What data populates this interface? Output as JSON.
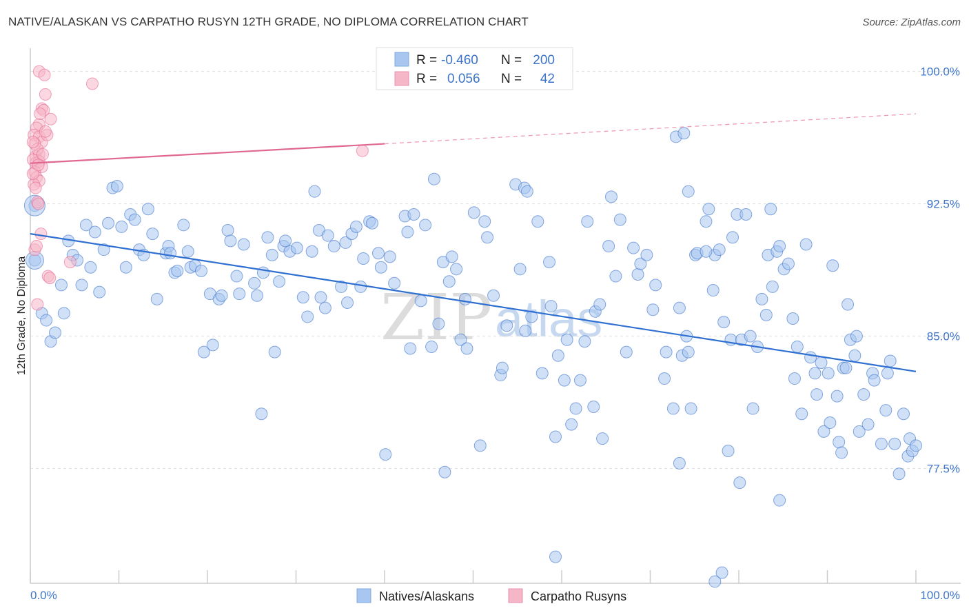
{
  "header": {
    "title": "NATIVE/ALASKAN VS CARPATHO RUSYN 12TH GRADE, NO DIPLOMA CORRELATION CHART",
    "source": "Source: ZipAtlas.com"
  },
  "watermark": {
    "zip": "ZIP",
    "atlas": "atlas"
  },
  "legend": {
    "rows": [
      {
        "r_label": "R =",
        "r_value": "-0.460",
        "n_label": "N =",
        "n_value": "200",
        "color": "#a8c6f0"
      },
      {
        "r_label": "R =",
        "r_value": "0.056",
        "n_label": "N =",
        "n_value": "42",
        "color": "#f5b6c8"
      }
    ]
  },
  "bottom_legend": [
    {
      "label": "Natives/Alaskans",
      "color": "#a8c6f0"
    },
    {
      "label": "Carpatho Rusyns",
      "color": "#f5b6c8"
    }
  ],
  "chart_data": {
    "type": "scatter",
    "ylabel": "12th Grade, No Diploma",
    "xlim": [
      0,
      100
    ],
    "ylim": [
      71,
      101
    ],
    "x_tick_labels": [
      "0.0%",
      "100.0%"
    ],
    "y_ticks": [
      {
        "value": 100.0,
        "label": "100.0%"
      },
      {
        "value": 92.5,
        "label": "92.5%"
      },
      {
        "value": 85.0,
        "label": "85.0%"
      },
      {
        "value": 77.5,
        "label": "77.5%"
      }
    ],
    "grid": "dashed horizontal",
    "series": [
      {
        "name": "Natives/Alaskans",
        "color": "#3d73c9",
        "fill": "#a8c6f0",
        "trend": {
          "x0": 0,
          "y0": 90.8,
          "x1": 100,
          "y1": 83.0
        },
        "points": [
          [
            0.5,
            92.4
          ],
          [
            0.5,
            89.3
          ],
          [
            1.3,
            86.3
          ],
          [
            1.8,
            85.9
          ],
          [
            2.3,
            84.7
          ],
          [
            2.8,
            85.2
          ],
          [
            3.5,
            87.9
          ],
          [
            3.8,
            86.3
          ],
          [
            4.3,
            90.4
          ],
          [
            4.8,
            89.6
          ],
          [
            5.3,
            89.3
          ],
          [
            5.8,
            87.9
          ],
          [
            6.3,
            91.3
          ],
          [
            6.8,
            88.9
          ],
          [
            7.3,
            90.9
          ],
          [
            7.8,
            87.5
          ],
          [
            8.3,
            89.9
          ],
          [
            8.8,
            91.4
          ],
          [
            9.3,
            93.4
          ],
          [
            9.8,
            93.5
          ],
          [
            10.3,
            91.2
          ],
          [
            10.8,
            88.9
          ],
          [
            11.3,
            91.9
          ],
          [
            11.8,
            91.6
          ],
          [
            12.3,
            89.9
          ],
          [
            12.8,
            89.6
          ],
          [
            13.3,
            92.2
          ],
          [
            13.8,
            90.8
          ],
          [
            14.3,
            87.1
          ],
          [
            15.3,
            89.7
          ],
          [
            15.6,
            90.1
          ],
          [
            15.8,
            89.7
          ],
          [
            16.3,
            88.6
          ],
          [
            16.6,
            88.7
          ],
          [
            17.3,
            91.3
          ],
          [
            17.8,
            89.8
          ],
          [
            18.1,
            88.9
          ],
          [
            18.6,
            89.0
          ],
          [
            19.3,
            88.7
          ],
          [
            19.6,
            84.1
          ],
          [
            20.3,
            87.4
          ],
          [
            20.6,
            84.5
          ],
          [
            21.3,
            87.1
          ],
          [
            21.6,
            87.3
          ],
          [
            22.3,
            91.0
          ],
          [
            22.6,
            90.4
          ],
          [
            23.3,
            88.4
          ],
          [
            23.6,
            87.4
          ],
          [
            24.1,
            90.2
          ],
          [
            25.3,
            88.0
          ],
          [
            25.6,
            87.3
          ],
          [
            26.1,
            80.6
          ],
          [
            26.3,
            88.6
          ],
          [
            26.8,
            90.6
          ],
          [
            27.3,
            89.6
          ],
          [
            27.6,
            84.1
          ],
          [
            28.1,
            88.1
          ],
          [
            28.6,
            90.1
          ],
          [
            28.8,
            90.4
          ],
          [
            29.3,
            89.8
          ],
          [
            30.1,
            90.0
          ],
          [
            30.8,
            87.2
          ],
          [
            31.3,
            86.1
          ],
          [
            31.8,
            89.8
          ],
          [
            32.1,
            93.2
          ],
          [
            32.6,
            91.0
          ],
          [
            32.8,
            87.2
          ],
          [
            33.3,
            86.6
          ],
          [
            33.6,
            90.7
          ],
          [
            34.3,
            90.1
          ],
          [
            35.1,
            87.8
          ],
          [
            35.6,
            90.3
          ],
          [
            35.8,
            86.9
          ],
          [
            36.3,
            90.8
          ],
          [
            36.8,
            91.2
          ],
          [
            37.3,
            87.8
          ],
          [
            37.6,
            89.4
          ],
          [
            38.3,
            91.5
          ],
          [
            38.6,
            91.4
          ],
          [
            39.3,
            89.7
          ],
          [
            39.6,
            88.9
          ],
          [
            40.1,
            78.3
          ],
          [
            40.6,
            89.5
          ],
          [
            41.1,
            88.0
          ],
          [
            42.3,
            91.8
          ],
          [
            42.6,
            90.9
          ],
          [
            43.3,
            91.9
          ],
          [
            44.1,
            87.0
          ],
          [
            44.6,
            91.3
          ],
          [
            45.3,
            84.4
          ],
          [
            45.6,
            93.9
          ],
          [
            46.1,
            85.7
          ],
          [
            46.6,
            89.2
          ],
          [
            46.8,
            77.3
          ],
          [
            47.3,
            88.1
          ],
          [
            47.6,
            89.5
          ],
          [
            48.1,
            88.8
          ],
          [
            48.6,
            84.8
          ],
          [
            49.1,
            87.1
          ],
          [
            49.3,
            84.3
          ],
          [
            50.1,
            92.0
          ],
          [
            50.8,
            78.8
          ],
          [
            51.3,
            91.5
          ],
          [
            51.6,
            90.6
          ],
          [
            52.3,
            87.3
          ],
          [
            53.1,
            82.8
          ],
          [
            53.3,
            83.2
          ],
          [
            53.8,
            85.6
          ],
          [
            54.8,
            93.6
          ],
          [
            55.3,
            88.8
          ],
          [
            55.8,
            93.4
          ],
          [
            56.1,
            93.2
          ],
          [
            56.6,
            86.1
          ],
          [
            57.3,
            91.5
          ],
          [
            57.8,
            82.9
          ],
          [
            58.6,
            89.2
          ],
          [
            58.8,
            86.7
          ],
          [
            59.3,
            79.3
          ],
          [
            60.3,
            82.5
          ],
          [
            60.6,
            84.8
          ],
          [
            61.1,
            80.0
          ],
          [
            61.6,
            80.9
          ],
          [
            62.1,
            82.5
          ],
          [
            62.6,
            84.7
          ],
          [
            62.9,
            91.5
          ],
          [
            63.6,
            81.0
          ],
          [
            63.8,
            86.4
          ],
          [
            64.3,
            86.8
          ],
          [
            64.6,
            79.2
          ],
          [
            65.3,
            90.1
          ],
          [
            65.6,
            92.9
          ],
          [
            66.1,
            88.4
          ],
          [
            66.6,
            91.6
          ],
          [
            67.3,
            84.1
          ],
          [
            68.1,
            90.0
          ],
          [
            68.6,
            88.5
          ],
          [
            68.9,
            89.1
          ],
          [
            69.6,
            89.6
          ],
          [
            70.3,
            86.5
          ],
          [
            70.6,
            87.9
          ],
          [
            71.6,
            82.6
          ],
          [
            71.8,
            84.1
          ],
          [
            72.6,
            80.9
          ],
          [
            73.3,
            86.6
          ],
          [
            73.6,
            83.9
          ],
          [
            74.1,
            85.0
          ],
          [
            74.3,
            93.2
          ],
          [
            74.6,
            80.9
          ],
          [
            75.1,
            89.6
          ],
          [
            75.3,
            89.7
          ],
          [
            76.3,
            91.5
          ],
          [
            76.6,
            92.2
          ],
          [
            77.1,
            87.6
          ],
          [
            77.3,
            89.6
          ],
          [
            77.8,
            89.9
          ],
          [
            78.3,
            85.8
          ],
          [
            78.8,
            78.5
          ],
          [
            79.1,
            84.8
          ],
          [
            79.3,
            90.6
          ],
          [
            79.8,
            91.9
          ],
          [
            80.1,
            76.7
          ],
          [
            80.3,
            84.8
          ],
          [
            80.8,
            91.9
          ],
          [
            81.3,
            85.0
          ],
          [
            81.6,
            80.9
          ],
          [
            82.1,
            84.4
          ],
          [
            82.6,
            87.1
          ],
          [
            83.1,
            86.2
          ],
          [
            83.3,
            89.6
          ],
          [
            83.6,
            92.2
          ],
          [
            83.8,
            87.8
          ],
          [
            84.3,
            89.8
          ],
          [
            84.6,
            90.1
          ],
          [
            85.1,
            88.8
          ],
          [
            85.6,
            89.1
          ],
          [
            86.1,
            86.0
          ],
          [
            86.3,
            82.6
          ],
          [
            86.6,
            84.4
          ],
          [
            87.1,
            80.6
          ],
          [
            87.6,
            90.2
          ],
          [
            88.1,
            83.8
          ],
          [
            88.6,
            82.9
          ],
          [
            88.8,
            81.7
          ],
          [
            89.3,
            83.5
          ],
          [
            89.6,
            79.6
          ],
          [
            90.1,
            82.9
          ],
          [
            90.3,
            80.1
          ],
          [
            90.6,
            89.0
          ],
          [
            91.1,
            81.6
          ],
          [
            91.3,
            79.0
          ],
          [
            91.6,
            78.4
          ],
          [
            91.8,
            83.2
          ],
          [
            92.1,
            83.2
          ],
          [
            92.3,
            86.8
          ],
          [
            92.6,
            84.8
          ],
          [
            93.1,
            83.9
          ],
          [
            93.3,
            85.0
          ],
          [
            93.6,
            79.6
          ],
          [
            94.1,
            81.7
          ],
          [
            94.6,
            80.0
          ],
          [
            95.1,
            82.9
          ],
          [
            95.3,
            82.5
          ],
          [
            96.1,
            78.9
          ],
          [
            96.6,
            80.8
          ],
          [
            96.8,
            82.9
          ],
          [
            97.1,
            83.6
          ],
          [
            97.6,
            78.9
          ],
          [
            98.1,
            77.2
          ],
          [
            98.6,
            80.6
          ],
          [
            99.1,
            78.2
          ],
          [
            99.3,
            79.2
          ],
          [
            99.6,
            78.5
          ],
          [
            100.0,
            78.8
          ],
          [
            59.6,
            83.9
          ],
          [
            42.9,
            84.3
          ],
          [
            55.9,
            85.3
          ],
          [
            74.3,
            84.1
          ],
          [
            76.3,
            89.8
          ],
          [
            72.9,
            96.3
          ],
          [
            73.8,
            96.5
          ],
          [
            59.3,
            72.5
          ],
          [
            77.3,
            71.1
          ],
          [
            78.1,
            71.6
          ],
          [
            84.6,
            75.7
          ],
          [
            73.3,
            77.8
          ]
        ]
      },
      {
        "name": "Carpatho Rusyns",
        "color": "#e86a95",
        "fill": "#f5b6c8",
        "trend": {
          "x0": 0,
          "y0": 94.8,
          "x1": 40,
          "y1": 95.9,
          "dash_to": {
            "x": 100,
            "y": 97.6
          }
        },
        "points": [
          [
            1.0,
            100.0
          ],
          [
            1.6,
            99.8
          ],
          [
            1.7,
            98.7
          ],
          [
            7.0,
            99.3
          ],
          [
            1.3,
            97.9
          ],
          [
            1.5,
            97.8
          ],
          [
            2.3,
            97.3
          ],
          [
            1.0,
            97.0
          ],
          [
            0.7,
            96.8
          ],
          [
            0.4,
            96.4
          ],
          [
            1.0,
            96.3
          ],
          [
            1.3,
            96.0
          ],
          [
            1.9,
            96.4
          ],
          [
            0.5,
            95.9
          ],
          [
            0.6,
            95.2
          ],
          [
            1.0,
            95.3
          ],
          [
            0.6,
            94.8
          ],
          [
            1.0,
            94.9
          ],
          [
            1.3,
            94.6
          ],
          [
            0.5,
            94.3
          ],
          [
            0.7,
            94.0
          ],
          [
            1.0,
            93.8
          ],
          [
            0.4,
            93.6
          ],
          [
            0.8,
            92.6
          ],
          [
            1.2,
            90.8
          ],
          [
            0.5,
            89.9
          ],
          [
            0.7,
            90.1
          ],
          [
            2.0,
            88.4
          ],
          [
            2.2,
            88.3
          ],
          [
            4.5,
            89.2
          ],
          [
            0.8,
            86.8
          ],
          [
            37.5,
            95.5
          ],
          [
            0.3,
            95.0
          ],
          [
            0.8,
            95.6
          ],
          [
            1.4,
            95.3
          ],
          [
            0.3,
            94.2
          ],
          [
            0.9,
            94.7
          ],
          [
            0.6,
            93.4
          ],
          [
            1.7,
            96.6
          ],
          [
            0.9,
            92.5
          ],
          [
            0.3,
            96.0
          ],
          [
            1.1,
            97.6
          ]
        ]
      }
    ]
  }
}
